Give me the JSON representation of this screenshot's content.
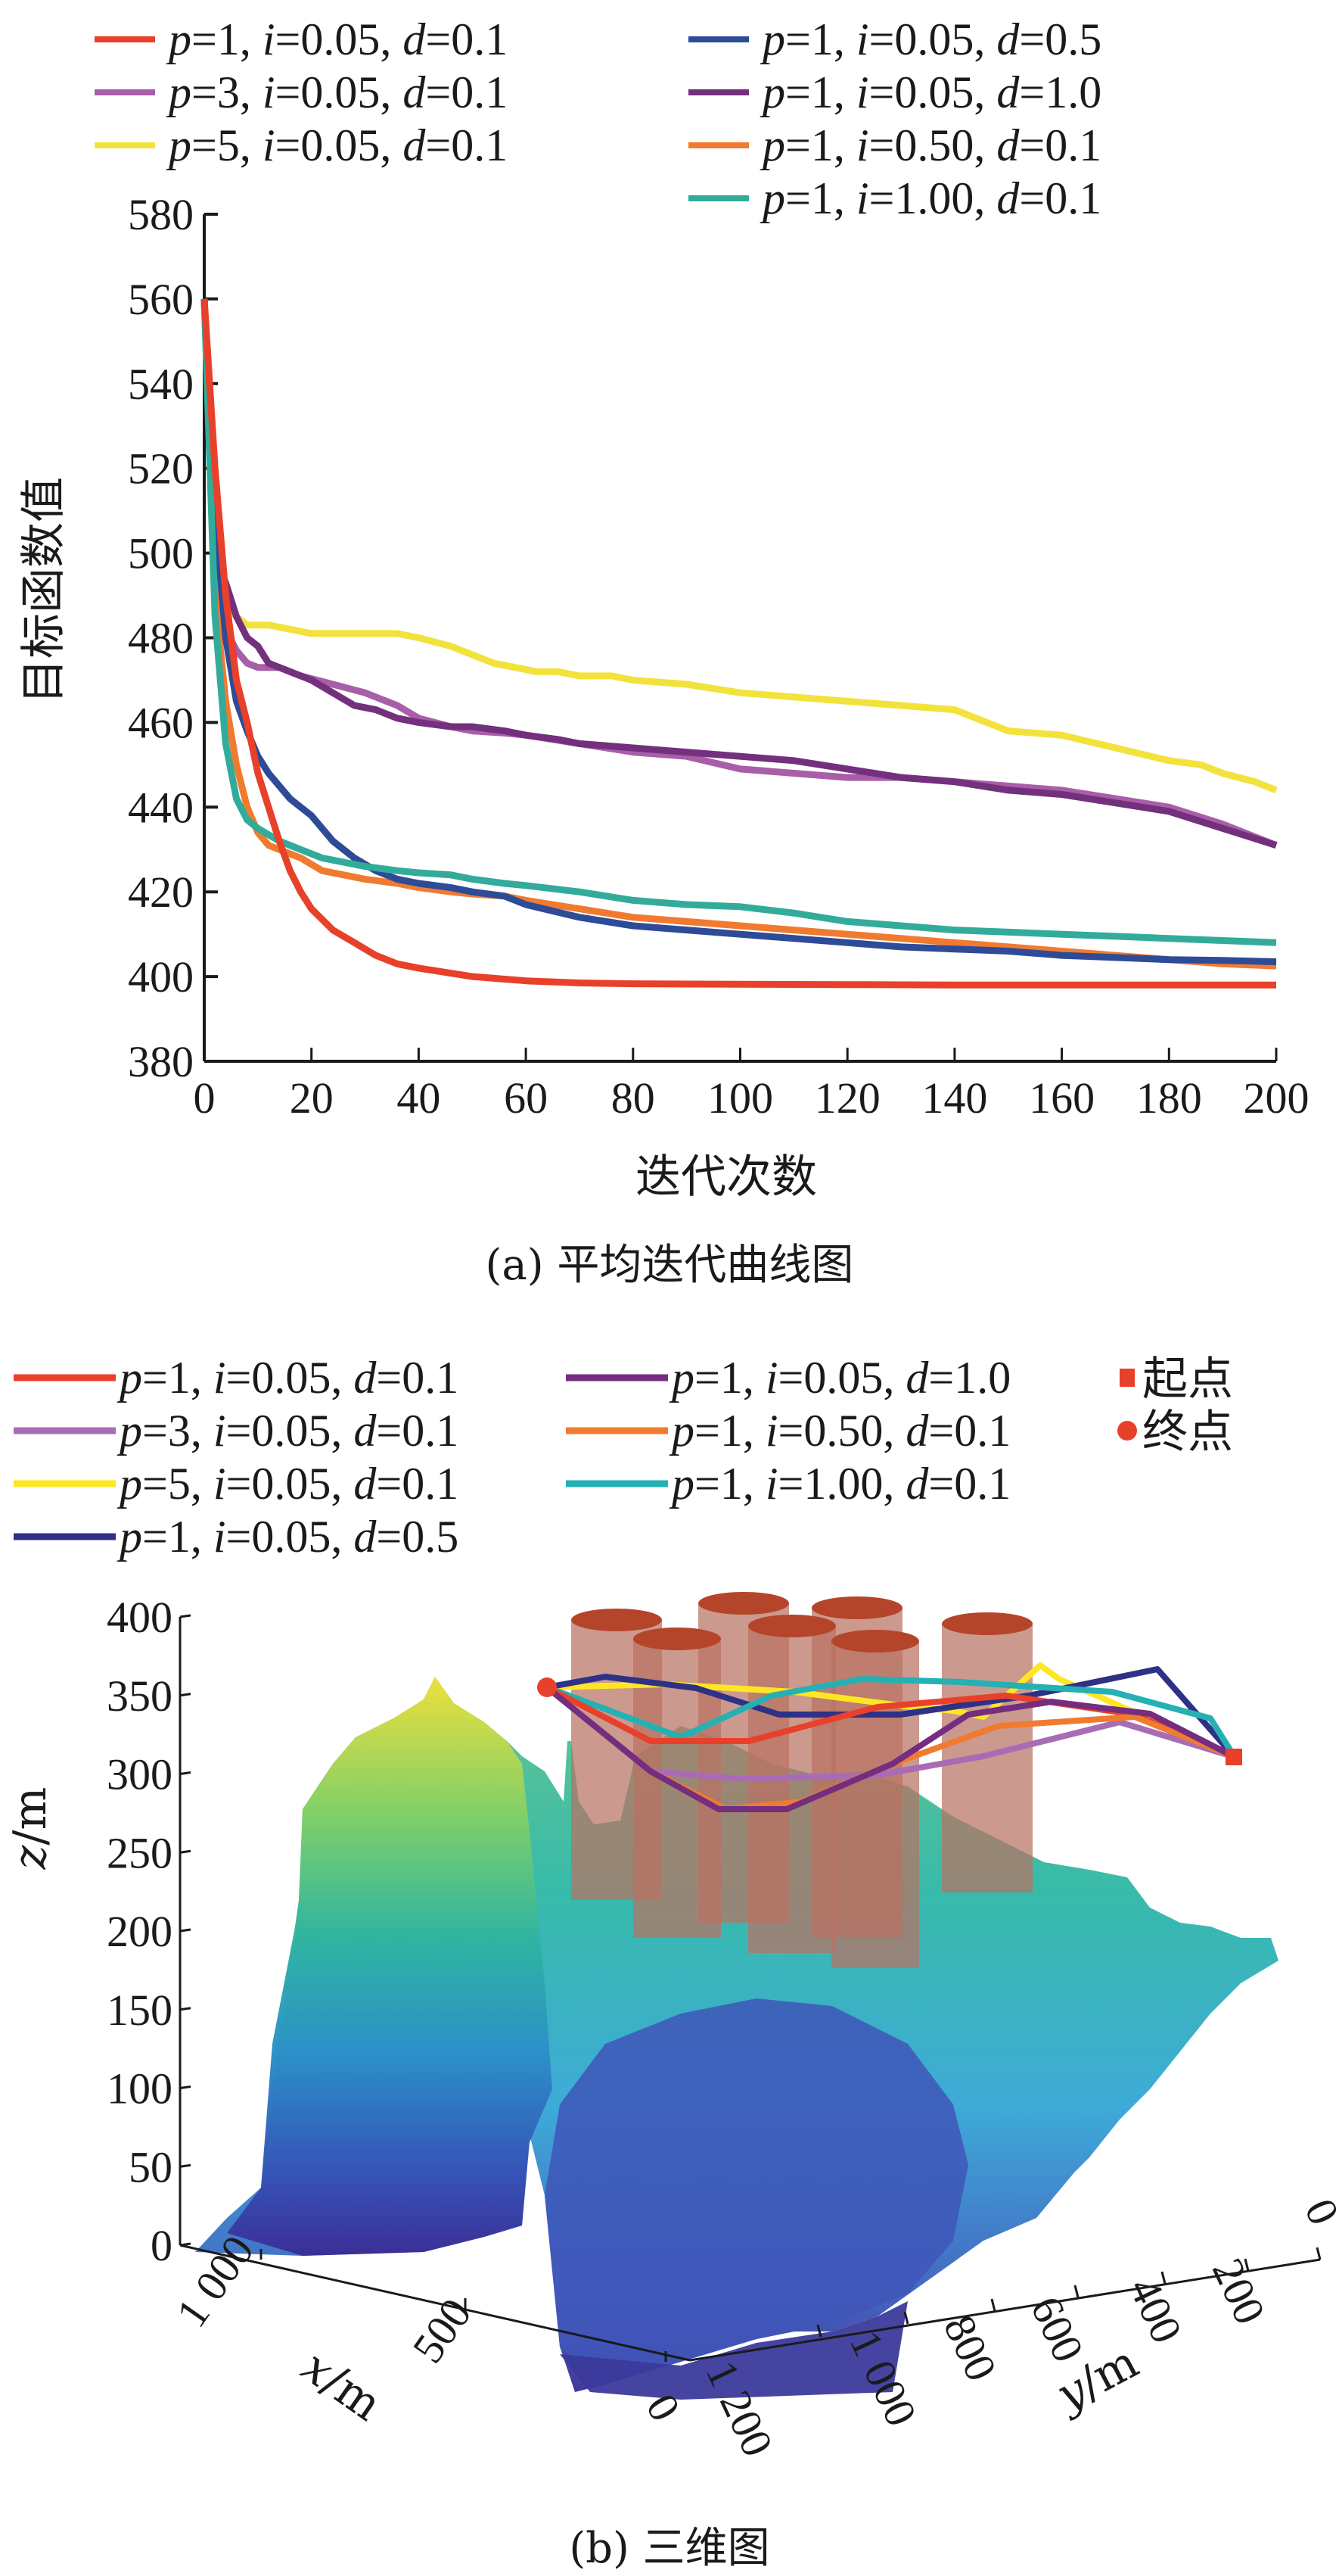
{
  "chart_data": [
    {
      "type": "line",
      "title": "",
      "caption": "(a) 平均迭代曲线图",
      "xlabel": "迭代次数",
      "ylabel": "目标函数值",
      "xlim": [
        0,
        200
      ],
      "ylim": [
        380,
        580
      ],
      "xticks": [
        0,
        20,
        40,
        60,
        80,
        100,
        120,
        140,
        160,
        180,
        200
      ],
      "yticks": [
        380,
        400,
        420,
        440,
        460,
        480,
        500,
        520,
        540,
        560,
        580
      ],
      "grid": false,
      "legend_placement": "top (two columns)",
      "series": [
        {
          "name": "p=1, i=0.05, d=0.1",
          "p": "1",
          "i": "0.05",
          "d": "0.1",
          "color": "#e8402a",
          "x": [
            0,
            2,
            4,
            6,
            8,
            10,
            12,
            14,
            16,
            18,
            20,
            24,
            28,
            32,
            36,
            40,
            50,
            60,
            70,
            80,
            100,
            120,
            140,
            160,
            180,
            200
          ],
          "y": [
            560,
            520,
            490,
            470,
            460,
            448,
            440,
            432,
            425,
            420,
            416,
            411,
            408,
            405,
            403,
            402,
            400,
            399,
            398.5,
            398.3,
            398.2,
            398.1,
            398,
            398,
            398,
            398
          ]
        },
        {
          "name": "p=3, i=0.05, d=0.1",
          "p": "3",
          "i": "0.05",
          "d": "0.1",
          "color": "#a85ea8",
          "x": [
            0,
            2,
            4,
            6,
            8,
            10,
            14,
            18,
            24,
            30,
            36,
            40,
            46,
            50,
            56,
            60,
            70,
            80,
            90,
            100,
            110,
            120,
            130,
            140,
            150,
            160,
            170,
            180,
            190,
            200
          ],
          "y": [
            560,
            500,
            482,
            477,
            474,
            473,
            473,
            471,
            469,
            467,
            464,
            461,
            459,
            458,
            457.5,
            457,
            455,
            453,
            452,
            449,
            448,
            447,
            447,
            446,
            445,
            444,
            442,
            440,
            436,
            431
          ]
        },
        {
          "name": "p=5, i=0.05, d=0.1",
          "p": "5",
          "i": "0.05",
          "d": "0.1",
          "color": "#f2e23c",
          "x": [
            0,
            2,
            4,
            6,
            8,
            12,
            16,
            20,
            26,
            30,
            36,
            40,
            46,
            50,
            54,
            58,
            62,
            66,
            70,
            76,
            80,
            90,
            100,
            110,
            120,
            130,
            140,
            146,
            150,
            160,
            170,
            180,
            186,
            190,
            196,
            200
          ],
          "y": [
            560,
            500,
            488,
            485,
            483,
            483,
            482,
            481,
            481,
            481,
            481,
            480,
            478,
            476,
            474,
            473,
            472,
            472,
            471,
            471,
            470,
            469,
            467,
            466,
            465,
            464,
            463,
            460,
            458,
            457,
            454,
            451,
            450,
            448,
            446,
            444
          ]
        },
        {
          "name": "p=1, i=0.05, d=0.5",
          "p": "1",
          "i": "0.05",
          "d": "0.5",
          "color": "#2d4b96",
          "x": [
            0,
            2,
            4,
            6,
            8,
            10,
            12,
            16,
            20,
            24,
            28,
            32,
            36,
            40,
            46,
            50,
            56,
            60,
            70,
            80,
            90,
            100,
            110,
            120,
            130,
            140,
            150,
            160,
            170,
            180,
            190,
            200
          ],
          "y": [
            560,
            510,
            480,
            465,
            458,
            452,
            448,
            442,
            438,
            432,
            428,
            425,
            423,
            422,
            421,
            420,
            419,
            417,
            414,
            412,
            411,
            410,
            409,
            408,
            407,
            406.5,
            406,
            405,
            404.5,
            404,
            403.8,
            403.5
          ]
        },
        {
          "name": "p=1, i=0.05, d=1.0",
          "p": "1",
          "i": "0.05",
          "d": "1.0",
          "color": "#73307c",
          "x": [
            0,
            2,
            4,
            6,
            8,
            10,
            12,
            16,
            20,
            24,
            28,
            32,
            36,
            40,
            46,
            50,
            56,
            60,
            66,
            70,
            80,
            90,
            100,
            110,
            120,
            130,
            140,
            150,
            160,
            170,
            180,
            190,
            200
          ],
          "y": [
            560,
            500,
            493,
            485,
            480,
            478,
            474,
            472,
            470,
            467,
            464,
            463,
            461,
            460,
            459,
            459,
            458,
            457,
            456,
            455,
            454,
            453,
            452,
            451,
            449,
            447,
            446,
            444,
            443,
            441,
            439,
            435,
            431
          ]
        },
        {
          "name": "p=1, i=0.50, d=0.1",
          "p": "1",
          "i": "0.50",
          "d": "0.1",
          "color": "#f07b30",
          "x": [
            0,
            2,
            4,
            6,
            8,
            10,
            12,
            14,
            18,
            22,
            26,
            30,
            36,
            40,
            46,
            50,
            56,
            60,
            70,
            80,
            90,
            100,
            110,
            120,
            130,
            140,
            150,
            160,
            170,
            180,
            190,
            200
          ],
          "y": [
            560,
            490,
            465,
            450,
            440,
            434,
            431,
            430,
            428,
            425,
            424,
            423,
            422,
            421,
            420,
            419.5,
            419,
            418,
            416,
            414,
            413,
            412,
            411,
            410,
            409,
            408,
            407,
            406,
            405,
            404,
            403,
            402.5
          ]
        },
        {
          "name": "p=1, i=1.00, d=0.1",
          "p": "1",
          "i": "1.00",
          "d": "0.1",
          "color": "#33ab9a",
          "x": [
            0,
            2,
            4,
            6,
            8,
            10,
            14,
            18,
            22,
            26,
            30,
            36,
            40,
            46,
            50,
            56,
            60,
            70,
            80,
            90,
            100,
            110,
            120,
            130,
            140,
            150,
            160,
            170,
            180,
            190,
            200
          ],
          "y": [
            560,
            485,
            455,
            442,
            437,
            435,
            432,
            430,
            428,
            427,
            426,
            425,
            424.5,
            424,
            423,
            422,
            421.5,
            420,
            418,
            417,
            416.5,
            415,
            413,
            412,
            411,
            410.5,
            410,
            409.5,
            409,
            408.5,
            408
          ]
        }
      ]
    },
    {
      "type": "surface3d",
      "title": "",
      "caption": "(b) 三维图",
      "xlabel": "x/m",
      "ylabel": "y/m",
      "zlabel": "z/m",
      "zticks": [
        0,
        50,
        100,
        150,
        200,
        250,
        300,
        350,
        400
      ],
      "xticks": [
        "0",
        "500",
        "1 000"
      ],
      "yticks": [
        "0",
        "200",
        "400",
        "600",
        "800",
        "1 000",
        "1 200"
      ],
      "zlim": [
        0,
        400
      ],
      "legend_placement": "top (three columns)",
      "obstacles": {
        "count": 7,
        "shape": "cylinder",
        "color": "#b5452a"
      },
      "markers": [
        {
          "name": "起点",
          "shape": "square",
          "color": "#e8402a"
        },
        {
          "name": "终点",
          "shape": "circle",
          "color": "#e8402a"
        }
      ],
      "series": [
        {
          "name": "p=1, i=0.05, d=0.1",
          "p": "1",
          "i": "0.05",
          "d": "0.1",
          "color": "#e8402a"
        },
        {
          "name": "p=3, i=0.05, d=0.1",
          "p": "3",
          "i": "0.05",
          "d": "0.1",
          "color": "#a86cb4"
        },
        {
          "name": "p=5, i=0.05, d=0.1",
          "p": "5",
          "i": "0.05",
          "d": "0.1",
          "color": "#fde725"
        },
        {
          "name": "p=1, i=0.05, d=0.5",
          "p": "1",
          "i": "0.05",
          "d": "0.5",
          "color": "#2e3185"
        },
        {
          "name": "p=1, i=0.05, d=1.0",
          "p": "1",
          "i": "0.05",
          "d": "1.0",
          "color": "#742d7f"
        },
        {
          "name": "p=1, i=0.50, d=0.1",
          "p": "1",
          "i": "0.50",
          "d": "0.1",
          "color": "#f07b30"
        },
        {
          "name": "p=1, i=1.00, d=0.1",
          "p": "1",
          "i": "1.00",
          "d": "0.1",
          "color": "#25b0b4"
        }
      ]
    }
  ]
}
